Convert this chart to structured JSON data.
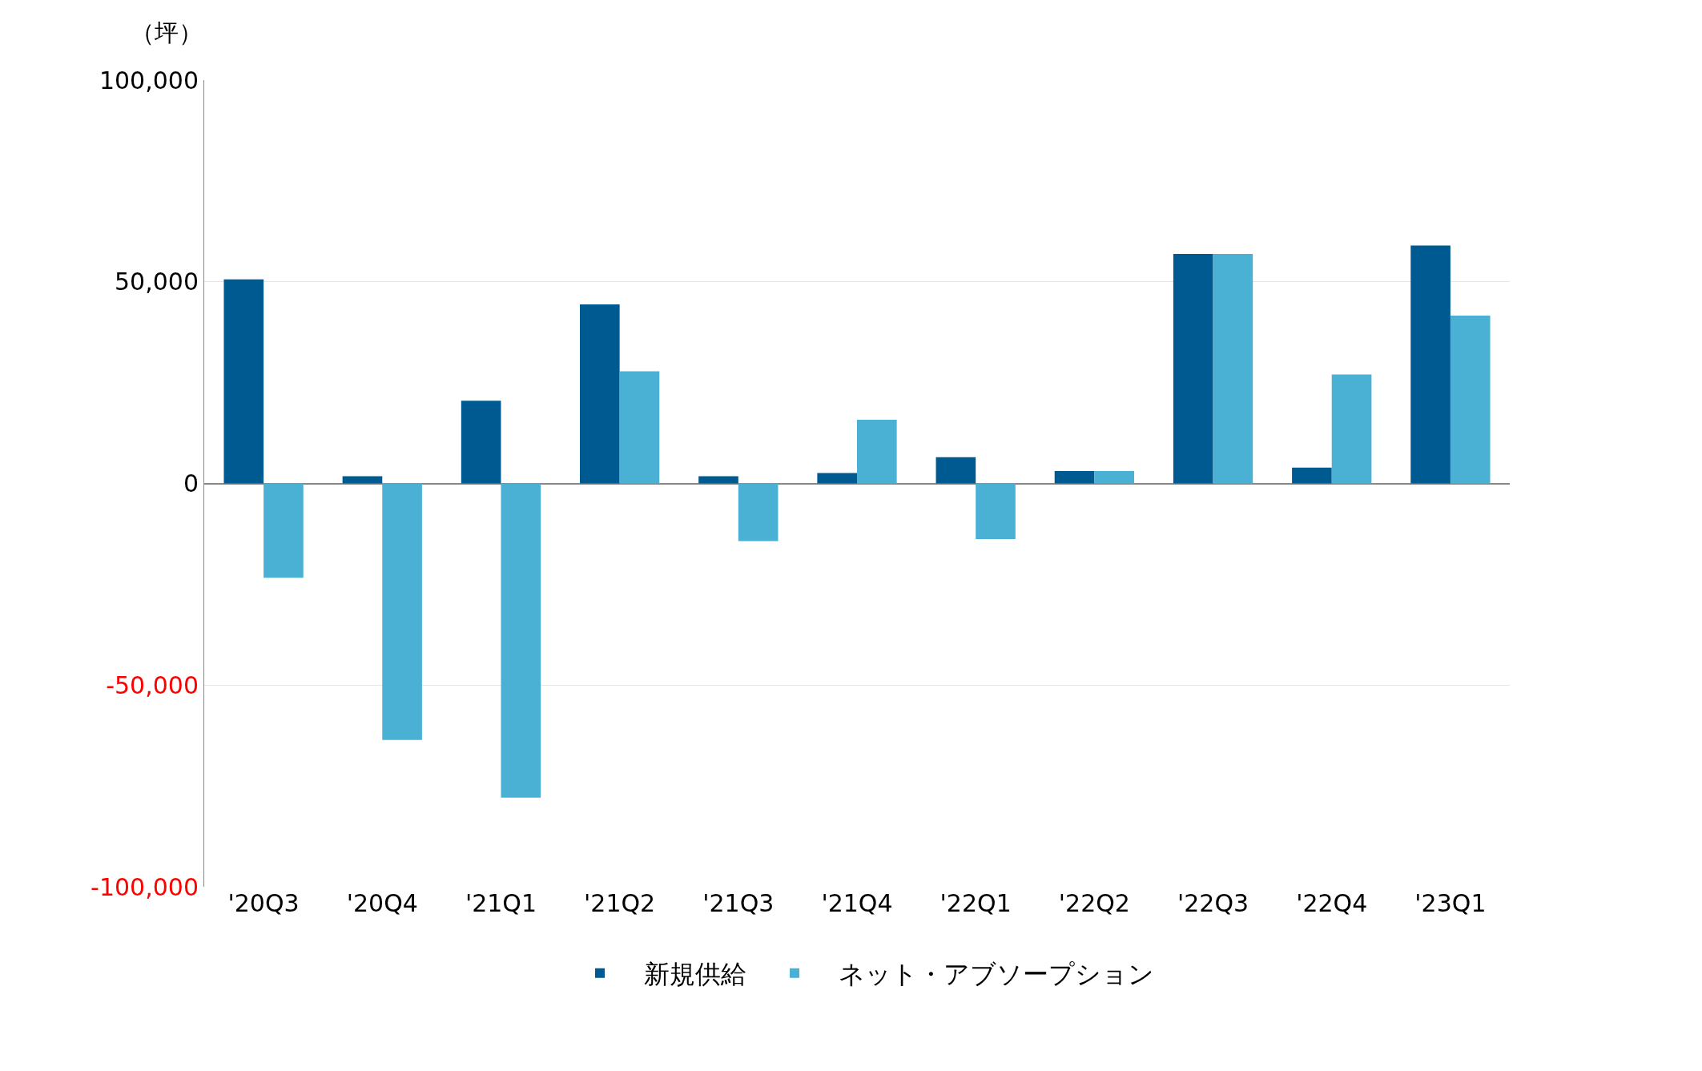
{
  "chart_data": {
    "type": "bar",
    "ylabel": "（坪）",
    "categories": [
      "'20Q3",
      "'20Q4",
      "'21Q1",
      "'21Q2",
      "'21Q3",
      "'21Q4",
      "'22Q1",
      "'22Q2",
      "'22Q3",
      "'22Q4",
      "'23Q1"
    ],
    "series": [
      {
        "name": "新規供給",
        "color": "#005a92",
        "values": [
          50600,
          1800,
          20500,
          44400,
          1800,
          2600,
          6500,
          3100,
          56900,
          3900,
          59000
        ]
      },
      {
        "name": "ネット・アブソープション",
        "color": "#4ab1d4",
        "values": [
          -23400,
          -63600,
          -77900,
          27800,
          -14300,
          15800,
          -13800,
          3100,
          56900,
          27000,
          41600
        ]
      }
    ],
    "ylim": [
      -100000,
      100000
    ],
    "yticks": [
      {
        "value": -100000,
        "label": "-100,000"
      },
      {
        "value": -50000,
        "label": "-50,000"
      },
      0,
      {
        "value": 50000,
        "label": "50,000"
      },
      {
        "value": 100000,
        "label": "100,000"
      }
    ],
    "grid": "y",
    "legend": "bottom"
  }
}
